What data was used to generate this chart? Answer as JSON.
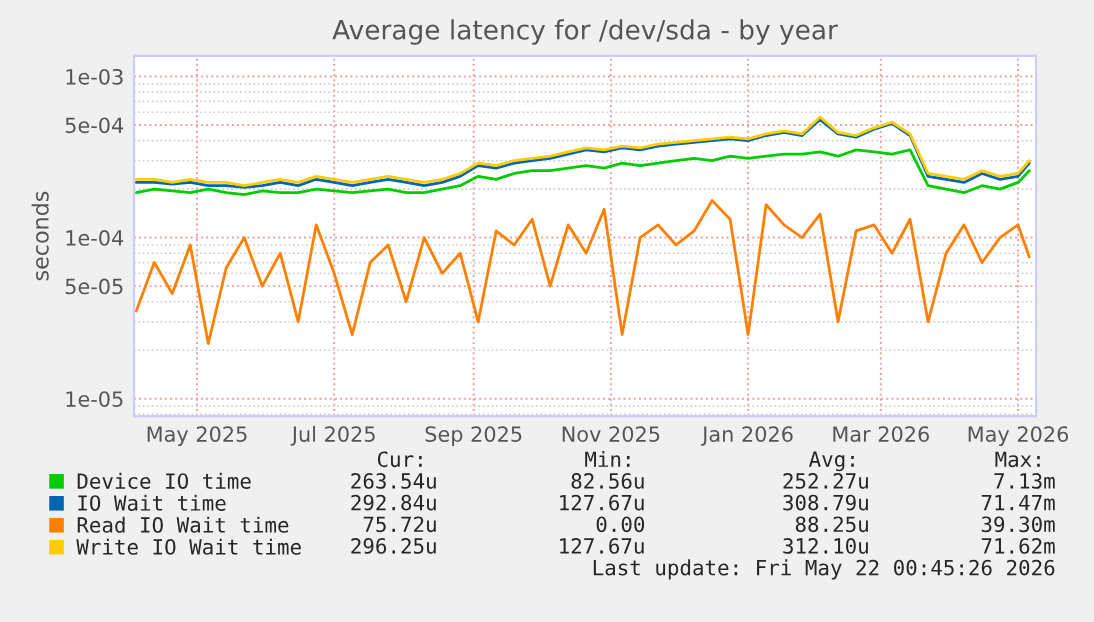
{
  "chart_data": {
    "type": "line",
    "title": "Average latency for /dev/sda - by year",
    "ylabel": "seconds",
    "x": [
      "2025-04-19",
      "2025-04-27",
      "2025-05-05",
      "2025-05-13",
      "2025-05-21",
      "2025-05-29",
      "2025-06-06",
      "2025-06-14",
      "2025-06-22",
      "2025-06-30",
      "2025-07-08",
      "2025-07-16",
      "2025-07-24",
      "2025-08-01",
      "2025-08-09",
      "2025-08-17",
      "2025-08-25",
      "2025-09-02",
      "2025-09-10",
      "2025-09-18",
      "2025-09-26",
      "2025-10-04",
      "2025-10-12",
      "2025-10-20",
      "2025-10-28",
      "2025-11-05",
      "2025-11-13",
      "2025-11-21",
      "2025-11-29",
      "2025-12-07",
      "2025-12-15",
      "2025-12-23",
      "2025-12-31",
      "2026-01-08",
      "2026-01-16",
      "2026-01-24",
      "2026-02-01",
      "2026-02-09",
      "2026-02-17",
      "2026-02-25",
      "2026-03-05",
      "2026-03-13",
      "2026-03-21",
      "2026-03-29",
      "2026-04-06",
      "2026-04-14",
      "2026-04-22",
      "2026-04-30",
      "2026-05-08",
      "2026-05-16",
      "2026-05-21"
    ],
    "series": [
      {
        "name": "Device IO time",
        "color": "#00cc00",
        "values": [
          0.00019,
          0.0002,
          0.000195,
          0.00019,
          0.0002,
          0.00019,
          0.000185,
          0.000195,
          0.00019,
          0.00019,
          0.0002,
          0.000195,
          0.00019,
          0.000195,
          0.0002,
          0.00019,
          0.00019,
          0.0002,
          0.00021,
          0.00024,
          0.00023,
          0.00025,
          0.00026,
          0.00026,
          0.00027,
          0.00028,
          0.00027,
          0.00029,
          0.00028,
          0.00029,
          0.0003,
          0.00031,
          0.0003,
          0.00032,
          0.00031,
          0.00032,
          0.00033,
          0.00033,
          0.00034,
          0.00032,
          0.00035,
          0.00034,
          0.00033,
          0.00035,
          0.00021,
          0.0002,
          0.00019,
          0.00021,
          0.0002,
          0.00022,
          0.00026
        ]
      },
      {
        "name": "IO Wait time",
        "color": "#0066b3",
        "values": [
          0.00022,
          0.00022,
          0.000215,
          0.00022,
          0.00021,
          0.00021,
          0.000205,
          0.00021,
          0.00022,
          0.00021,
          0.00023,
          0.00022,
          0.00021,
          0.00022,
          0.00023,
          0.00022,
          0.00021,
          0.00022,
          0.00024,
          0.00028,
          0.00027,
          0.00029,
          0.0003,
          0.00031,
          0.00033,
          0.00035,
          0.00034,
          0.00036,
          0.00035,
          0.00037,
          0.00038,
          0.00039,
          0.0004,
          0.00041,
          0.0004,
          0.00043,
          0.00045,
          0.00043,
          0.00054,
          0.00044,
          0.00042,
          0.00047,
          0.00051,
          0.00043,
          0.00024,
          0.00023,
          0.00022,
          0.00025,
          0.00023,
          0.00024,
          0.00029
        ]
      },
      {
        "name": "Read IO Wait time",
        "color": "#ff8000",
        "values": [
          3.5e-05,
          7e-05,
          4.5e-05,
          9e-05,
          2.2e-05,
          6.5e-05,
          0.0001,
          5e-05,
          8e-05,
          3e-05,
          0.00012,
          6e-05,
          2.5e-05,
          7e-05,
          9e-05,
          4e-05,
          0.0001,
          6e-05,
          8e-05,
          3e-05,
          0.00011,
          9e-05,
          0.00013,
          5e-05,
          0.00012,
          8e-05,
          0.00015,
          2.5e-05,
          0.0001,
          0.00012,
          9e-05,
          0.00011,
          0.00017,
          0.00013,
          2.5e-05,
          0.00016,
          0.00012,
          0.0001,
          0.00014,
          3e-05,
          0.00011,
          0.00012,
          8e-05,
          0.00013,
          3e-05,
          8e-05,
          0.00012,
          7e-05,
          0.0001,
          0.00012,
          7.6e-05
        ]
      },
      {
        "name": "Write IO Wait time",
        "color": "#ffcc00",
        "values": [
          0.00023,
          0.00023,
          0.00022,
          0.00023,
          0.00022,
          0.00022,
          0.00021,
          0.00022,
          0.00023,
          0.00022,
          0.00024,
          0.00023,
          0.00022,
          0.00023,
          0.00024,
          0.00023,
          0.00022,
          0.00023,
          0.00025,
          0.00029,
          0.00028,
          0.0003,
          0.00031,
          0.00032,
          0.00034,
          0.00036,
          0.00035,
          0.00037,
          0.00036,
          0.00038,
          0.00039,
          0.0004,
          0.00041,
          0.00042,
          0.00041,
          0.00044,
          0.00046,
          0.00044,
          0.00056,
          0.00045,
          0.00043,
          0.00048,
          0.00052,
          0.00044,
          0.00025,
          0.00024,
          0.00023,
          0.00026,
          0.00024,
          0.00025,
          0.0003
        ]
      }
    ],
    "log": "y",
    "ylim": [
      7.8e-06,
      0.00134
    ],
    "yticks": [
      {
        "value": 1e-05,
        "label": "1e-05"
      },
      {
        "value": 5e-05,
        "label": "5e-05"
      },
      {
        "value": 0.0001,
        "label": "1e-04"
      },
      {
        "value": 0.0005,
        "label": "5e-04"
      },
      {
        "value": 0.001,
        "label": "1e-03"
      }
    ],
    "xlim": [
      "2025-04-18",
      "2026-05-24"
    ],
    "xticks": [
      {
        "value": "2025-05-16",
        "label": "May 2025"
      },
      {
        "value": "2025-07-16",
        "label": "Jul 2025"
      },
      {
        "value": "2025-09-16",
        "label": "Sep 2025"
      },
      {
        "value": "2025-11-16",
        "label": "Nov 2025"
      },
      {
        "value": "2026-01-16",
        "label": "Jan 2026"
      },
      {
        "value": "2026-03-16",
        "label": "Mar 2026"
      },
      {
        "value": "2026-05-16",
        "label": "May 2026"
      }
    ],
    "grid": true,
    "legend": "bottom",
    "annotations": [
      "Cur:",
      "Min:",
      "Avg:",
      "Max:",
      "263.54u",
      "82.56u",
      "252.27u",
      "7.13m",
      "292.84u",
      "127.67u",
      "308.79u",
      "71.47m",
      "75.72u",
      "0.00",
      "88.25u",
      "39.30m",
      "296.25u",
      "127.67u",
      "312.10u",
      "71.62m",
      "Last update: Fri May 22 00:45:26 2026"
    ]
  }
}
